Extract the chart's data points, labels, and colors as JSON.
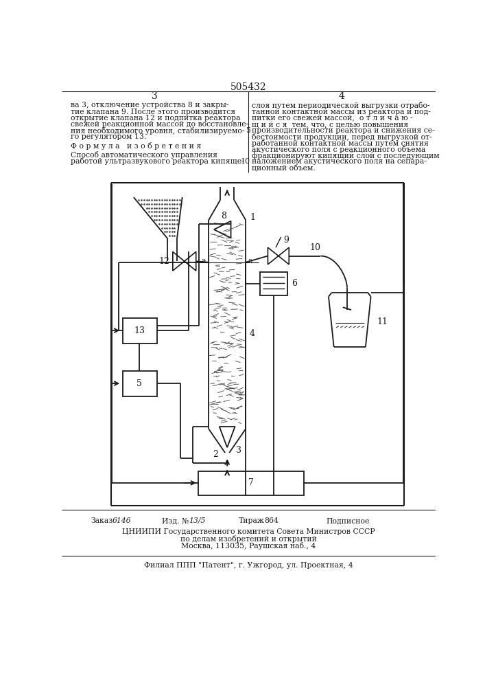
{
  "patent_number": "505432",
  "page_left": "3",
  "page_right": "4",
  "bg_color": "#ffffff",
  "line_color": "#1a1a1a",
  "text_color": "#1a1a1a",
  "footer_line1_parts": [
    "Заказ",
    "6146",
    "Изд. №",
    "13/5",
    "Тираж",
    "864",
    "Подписное"
  ],
  "footer_line2": "ЦНИИПИ Государственного комитета Совета Министров СССР",
  "footer_line3": "по делам изобретений и открытий",
  "footer_line4": "Москва, 113035, Раушская наб., 4",
  "footer_line5": "Филиал ППП \"Патент\", г. Ужгород, ул. Проектная, 4"
}
